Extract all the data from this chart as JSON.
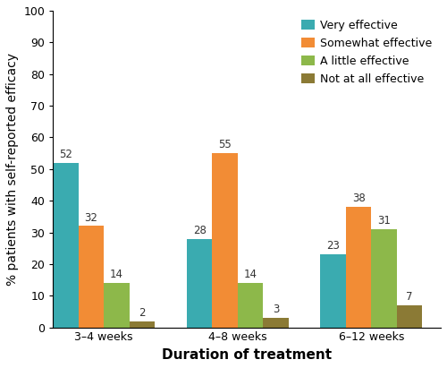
{
  "title": "",
  "xlabel": "Duration of treatment",
  "ylabel": "% patients with self-reported efficacy",
  "categories": [
    "3–4 weeks",
    "4–8 weeks",
    "6–12 weeks"
  ],
  "series": [
    {
      "label": "Very effective",
      "values": [
        52,
        28,
        23
      ],
      "color": "#3aabb0"
    },
    {
      "label": "Somewhat effective",
      "values": [
        32,
        55,
        38
      ],
      "color": "#f28c35"
    },
    {
      "label": "A little effective",
      "values": [
        14,
        14,
        31
      ],
      "color": "#8db84a"
    },
    {
      "label": "Not at all effective",
      "values": [
        2,
        3,
        7
      ],
      "color": "#8b7a35"
    }
  ],
  "ylim": [
    0,
    100
  ],
  "yticks": [
    0,
    10,
    20,
    30,
    40,
    50,
    60,
    70,
    80,
    90,
    100
  ],
  "bar_width": 0.19,
  "group_centers": [
    0.38,
    1.38,
    2.38
  ],
  "xlim": [
    0,
    2.9
  ],
  "label_fontsize": 8.5,
  "axis_label_fontsize": 11,
  "tick_fontsize": 9,
  "legend_fontsize": 9,
  "xlabel_fontweight": "bold"
}
